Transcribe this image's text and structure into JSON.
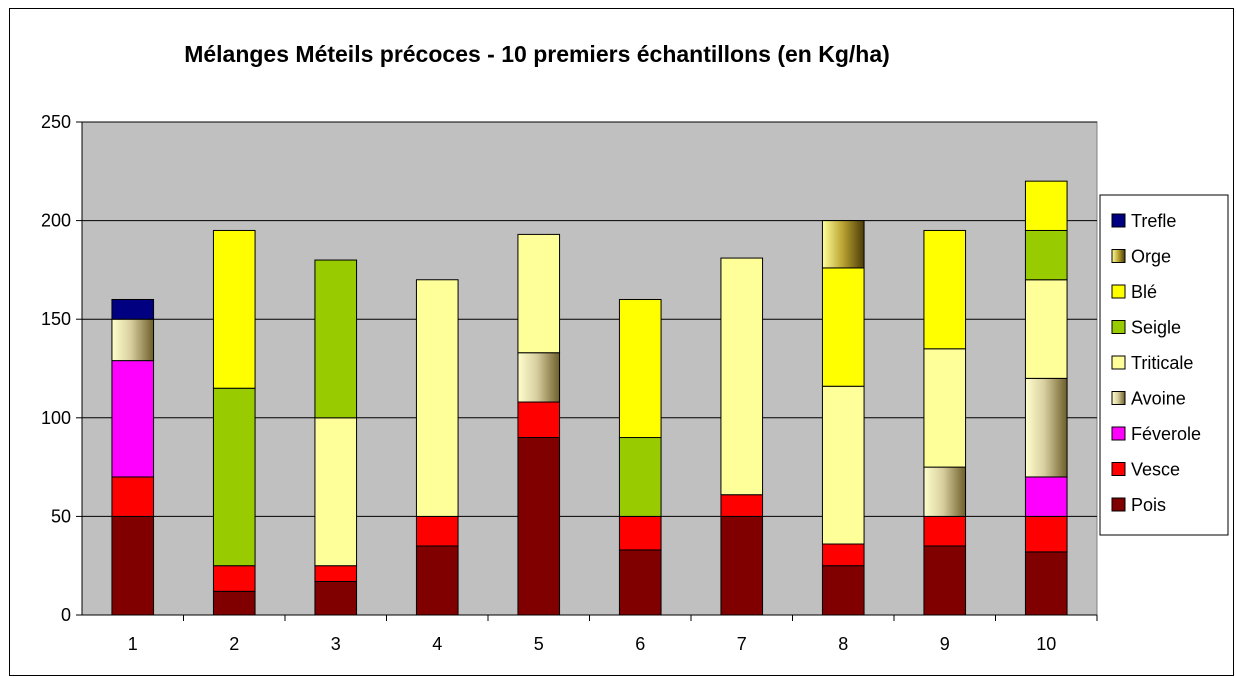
{
  "chart_data": {
    "type": "bar",
    "stacked": true,
    "title": "Mélanges Méteils précoces - 10 premiers échantillons (en Kg/ha)",
    "xlabel": "",
    "ylabel": "",
    "ylim": [
      0,
      250
    ],
    "yticks": [
      "0",
      "50",
      "100",
      "150",
      "200",
      "250"
    ],
    "grid": true,
    "legend_position": "right",
    "categories": [
      "1",
      "2",
      "3",
      "4",
      "5",
      "6",
      "7",
      "8",
      "9",
      "10"
    ],
    "series": [
      {
        "name": "Pois",
        "color": "#800000",
        "values": [
          50,
          12,
          17,
          35,
          90,
          33,
          50,
          25,
          35,
          32
        ]
      },
      {
        "name": "Vesce",
        "color": "#FF0000",
        "values": [
          20,
          13,
          8,
          15,
          18,
          17,
          11,
          11,
          15,
          18
        ]
      },
      {
        "name": "Féverole",
        "color": "#FF00FF",
        "values": [
          59,
          0,
          0,
          0,
          0,
          0,
          0,
          0,
          0,
          20
        ]
      },
      {
        "name": "Avoine",
        "color": "#8B7D3A",
        "values": [
          21,
          0,
          0,
          0,
          25,
          0,
          0,
          0,
          25,
          50
        ]
      },
      {
        "name": "Triticale",
        "color": "#FFFF99",
        "values": [
          0,
          0,
          75,
          120,
          60,
          0,
          120,
          80,
          60,
          50
        ]
      },
      {
        "name": "Seigle",
        "color": "#99CC00",
        "values": [
          0,
          90,
          80,
          0,
          0,
          40,
          0,
          0,
          0,
          25
        ]
      },
      {
        "name": "Blé",
        "color": "#FFFF00",
        "values": [
          0,
          80,
          0,
          0,
          0,
          70,
          0,
          60,
          60,
          25
        ]
      },
      {
        "name": "Orge",
        "color": "#6B5A10",
        "values": [
          0,
          0,
          0,
          0,
          0,
          0,
          0,
          24,
          0,
          0
        ]
      },
      {
        "name": "Trefle",
        "color": "#000080",
        "values": [
          10,
          0,
          0,
          0,
          0,
          0,
          0,
          0,
          0,
          0
        ]
      }
    ],
    "plot_background": "#C0C0C0"
  }
}
